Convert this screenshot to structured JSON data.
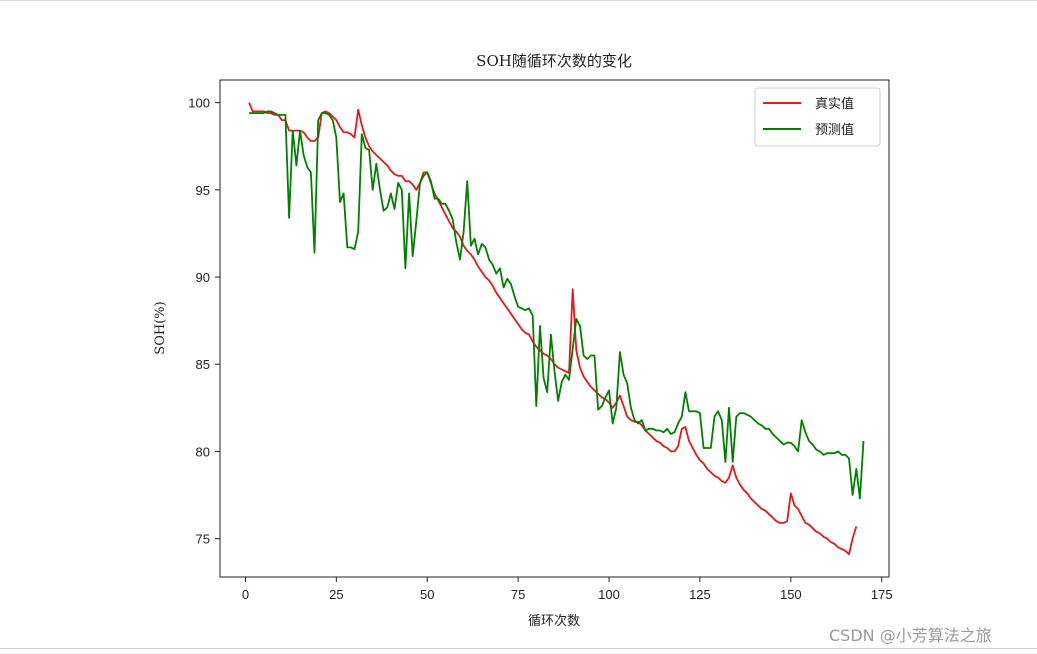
{
  "chart_data": {
    "type": "line",
    "title": "SOH随循环次数的变化",
    "xlabel": "循环次数",
    "ylabel": "SOH(%)",
    "xlim": [
      -7,
      177
    ],
    "ylim": [
      72.8,
      101.3
    ],
    "xticks": [
      0,
      25,
      50,
      75,
      100,
      125,
      150,
      175
    ],
    "yticks": [
      75,
      80,
      85,
      90,
      95,
      100
    ],
    "grid": false,
    "legend_position": "upper right",
    "x_start": 1,
    "series": [
      {
        "name": "真实值",
        "color": "#e31a1c",
        "values": [
          100.0,
          99.5,
          99.5,
          99.5,
          99.5,
          99.4,
          99.4,
          99.3,
          99.3,
          99.0,
          99.0,
          98.4,
          98.4,
          98.4,
          98.4,
          98.3,
          98.0,
          97.8,
          97.8,
          98.0,
          99.4,
          99.5,
          99.4,
          99.2,
          99.0,
          98.6,
          98.3,
          98.3,
          98.2,
          98.0,
          99.6,
          98.7,
          98.0,
          97.5,
          97.2,
          97.0,
          96.8,
          96.6,
          96.4,
          96.1,
          95.9,
          95.8,
          95.8,
          95.5,
          95.5,
          95.3,
          95.0,
          95.4,
          96.0,
          96.0,
          95.4,
          94.8,
          94.4,
          94.0,
          93.6,
          93.2,
          92.8,
          92.6,
          92.3,
          91.8,
          91.5,
          91.3,
          91.0,
          90.6,
          90.3,
          90.0,
          89.8,
          89.5,
          89.1,
          88.8,
          88.5,
          88.2,
          87.9,
          87.6,
          87.3,
          87.0,
          86.8,
          86.7,
          86.3,
          86.0,
          85.8,
          85.6,
          85.5,
          85.3,
          85.0,
          84.8,
          84.7,
          84.6,
          84.5,
          89.3,
          85.8,
          84.8,
          84.3,
          84.0,
          83.7,
          83.5,
          83.3,
          83.1,
          83.0,
          82.8,
          82.5,
          82.8,
          83.2,
          82.6,
          82.0,
          81.8,
          81.7,
          81.7,
          81.5,
          81.2,
          81.0,
          80.8,
          80.6,
          80.5,
          80.3,
          80.2,
          80.0,
          80.0,
          80.3,
          81.3,
          81.4,
          80.6,
          80.2,
          79.8,
          79.5,
          79.3,
          79.0,
          78.8,
          78.6,
          78.5,
          78.3,
          78.2,
          78.5,
          79.2,
          78.5,
          78.1,
          77.8,
          77.6,
          77.3,
          77.1,
          76.9,
          76.7,
          76.6,
          76.4,
          76.2,
          76.0,
          75.9,
          75.9,
          76.0,
          77.6,
          76.9,
          76.7,
          76.3,
          75.9,
          75.8,
          75.6,
          75.4,
          75.3,
          75.1,
          75.0,
          74.8,
          74.7,
          74.5,
          74.4,
          74.3,
          74.1,
          75.0,
          75.7
        ],
        "x_end": 168
      },
      {
        "name": "预测值",
        "color": "#008000",
        "values": [
          99.4,
          99.4,
          99.4,
          99.4,
          99.4,
          99.5,
          99.5,
          99.4,
          99.3,
          99.3,
          99.3,
          93.4,
          98.4,
          96.4,
          98.4,
          97.0,
          96.3,
          96.0,
          91.4,
          99.0,
          99.4,
          99.4,
          99.3,
          99.0,
          98.0,
          94.3,
          94.8,
          91.7,
          91.7,
          91.6,
          92.6,
          98.2,
          97.4,
          97.3,
          95.0,
          96.5,
          95.0,
          93.8,
          94.0,
          94.8,
          93.9,
          95.4,
          95.0,
          90.5,
          94.8,
          91.2,
          93.2,
          95.4,
          95.8,
          96.0,
          95.5,
          94.5,
          94.5,
          94.2,
          94.2,
          93.8,
          93.3,
          92.0,
          91.0,
          92.6,
          95.5,
          91.8,
          92.2,
          91.3,
          91.9,
          91.7,
          91.0,
          90.7,
          90.2,
          90.5,
          89.4,
          89.9,
          89.6,
          88.9,
          88.3,
          88.2,
          88.1,
          88.2,
          87.8,
          82.6,
          87.2,
          84.2,
          83.4,
          86.7,
          84.6,
          82.9,
          84.0,
          84.4,
          84.1,
          85.9,
          87.6,
          87.2,
          85.5,
          85.3,
          85.5,
          85.5,
          82.4,
          82.6,
          83.1,
          83.5,
          81.6,
          82.5,
          85.7,
          84.4,
          83.9,
          82.5,
          81.8,
          81.6,
          81.8,
          81.2,
          81.3,
          81.3,
          81.2,
          81.2,
          81.1,
          81.3,
          81.0,
          81.1,
          81.6,
          82.0,
          83.4,
          82.3,
          82.3,
          82.3,
          82.2,
          80.2,
          80.2,
          80.2,
          82.0,
          82.3,
          81.8,
          79.4,
          82.5,
          79.4,
          82.0,
          82.2,
          82.2,
          82.1,
          82.0,
          81.8,
          81.6,
          81.5,
          81.3,
          81.3,
          81.0,
          80.8,
          80.6,
          80.4,
          80.5,
          80.5,
          80.3,
          80.0,
          81.8,
          81.1,
          80.6,
          80.4,
          80.1,
          80.0,
          79.8,
          79.9,
          79.9,
          79.9,
          80.0,
          79.8,
          79.8,
          79.6,
          77.5,
          79.0,
          77.3,
          80.6
        ],
        "x_end": 168
      }
    ]
  },
  "watermark": "CSDN @小芳算法之旅"
}
